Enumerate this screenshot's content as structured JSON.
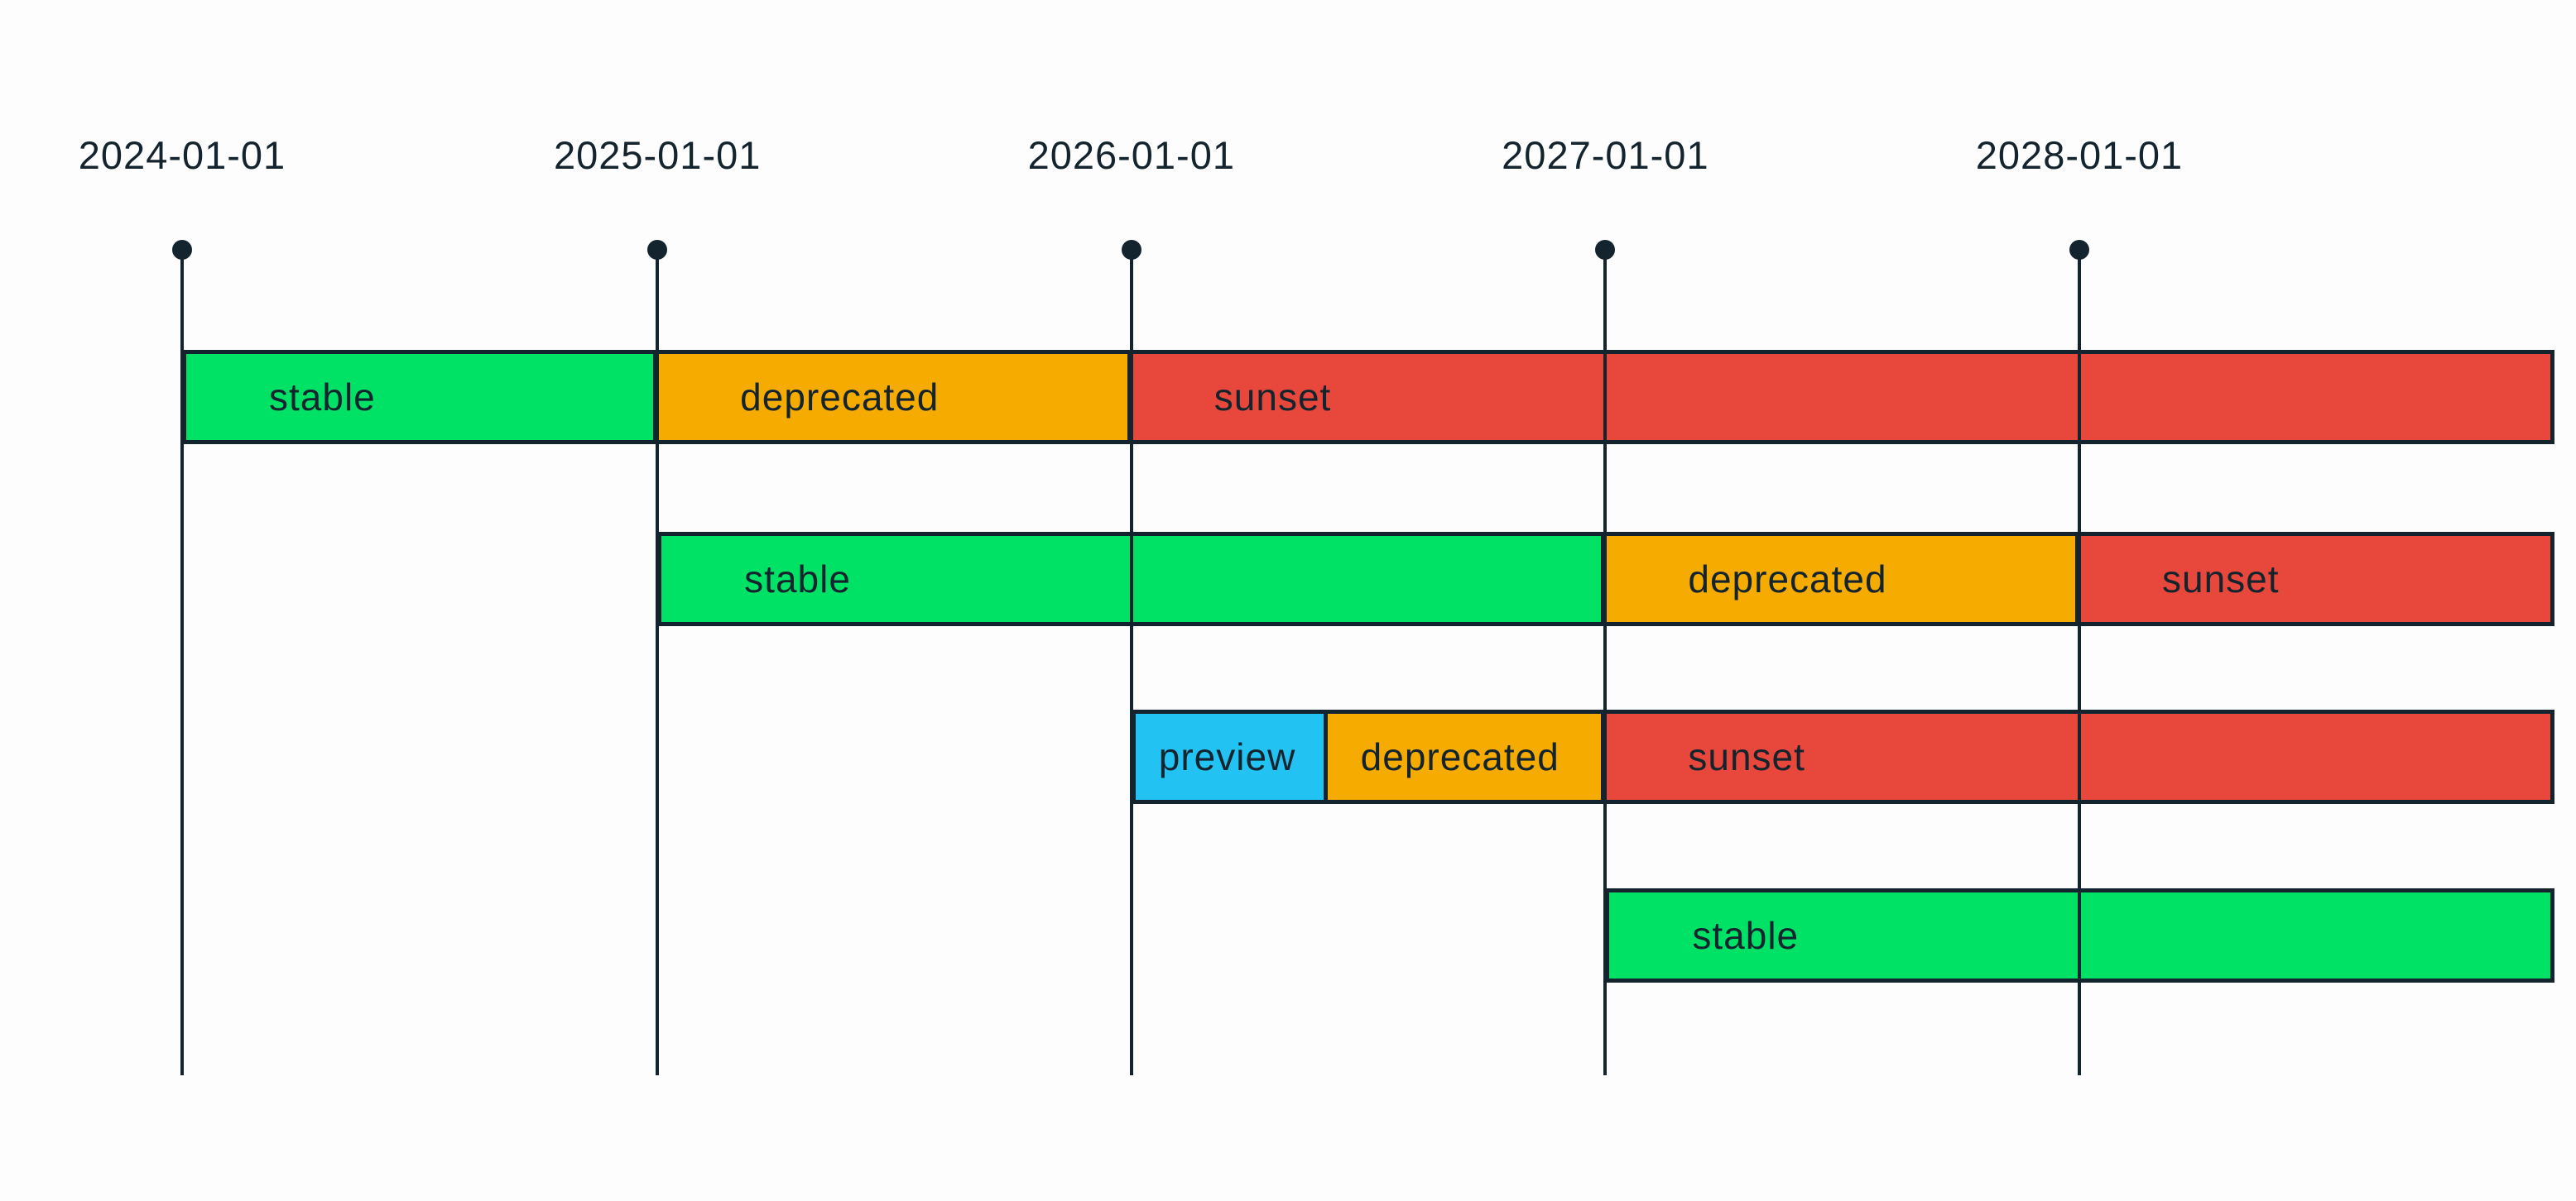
{
  "page": {
    "background": "#fdfdfd",
    "title": ""
  },
  "chart_data": {
    "type": "bar",
    "subtype": "gantt-timeline",
    "title": "",
    "xlabel": "",
    "ylabel": "",
    "grid": "vertical-date-gridlines-with-dot-markers",
    "legend": "none",
    "axis": {
      "unit": "date",
      "tick_labels": [
        "2024-01-01",
        "2025-01-01",
        "2026-01-01",
        "2027-01-01",
        "2028-01-01"
      ],
      "range_start": "2024-01-01",
      "range_end": "2029-01-01"
    },
    "colors": {
      "stable": "#00e266",
      "deprecated": "#f5ab00",
      "sunset": "#e8473b",
      "preview": "#22c3f2",
      "line": "#14242e",
      "text": "#14242e"
    },
    "rows": [
      {
        "name": "version-row-1",
        "segments": [
          {
            "label": "stable",
            "status": "stable",
            "start": "2024-01-01",
            "end": "2025-01-01"
          },
          {
            "label": "deprecated",
            "status": "deprecated",
            "start": "2025-01-01",
            "end": "2026-01-01"
          },
          {
            "label": "sunset",
            "status": "sunset",
            "start": "2026-01-01",
            "end": "2029-01-01"
          }
        ]
      },
      {
        "name": "version-row-2",
        "segments": [
          {
            "label": "stable",
            "status": "stable",
            "start": "2025-01-01",
            "end": "2027-01-01"
          },
          {
            "label": "deprecated",
            "status": "deprecated",
            "start": "2027-01-01",
            "end": "2028-01-01"
          },
          {
            "label": "sunset",
            "status": "sunset",
            "start": "2028-01-01",
            "end": "2029-01-01"
          }
        ]
      },
      {
        "name": "version-row-3",
        "segments": [
          {
            "label": "preview",
            "status": "preview",
            "start": "2026-01-01",
            "end": "2026-06-01"
          },
          {
            "label": "deprecated",
            "status": "deprecated",
            "start": "2026-06-01",
            "end": "2027-01-01"
          },
          {
            "label": "sunset",
            "status": "sunset",
            "start": "2027-01-01",
            "end": "2029-01-01"
          }
        ]
      },
      {
        "name": "version-row-4",
        "segments": [
          {
            "label": "stable",
            "status": "stable",
            "start": "2027-01-01",
            "end": "2029-01-01"
          }
        ]
      }
    ]
  }
}
